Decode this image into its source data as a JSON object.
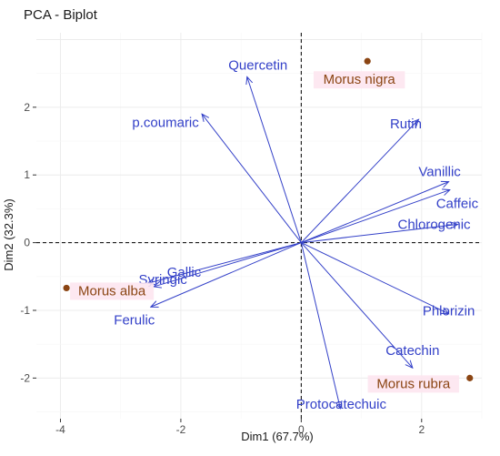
{
  "chart_data": {
    "type": "scatter",
    "title": "PCA - Biplot",
    "xlabel": "Dim1 (67.7%)",
    "ylabel": "Dim2 (32.3%)",
    "xlim": [
      -4.4,
      3.0
    ],
    "ylim": [
      -2.6,
      3.1
    ],
    "x_ticks": [
      -4,
      -2,
      0,
      2
    ],
    "y_ticks": [
      -2,
      -1,
      0,
      1,
      2
    ],
    "grid": true,
    "reference_lines": "dashed lines at x = 0 and y = 0",
    "arrow_color": "#3340c8",
    "point_color": "#8b4513",
    "variables": [
      {
        "name": "Quercetin",
        "x": -0.9,
        "y": 2.45
      },
      {
        "name": "p.coumaric",
        "x": -1.65,
        "y": 1.9
      },
      {
        "name": "Rutin",
        "x": 1.95,
        "y": 1.82
      },
      {
        "name": "Vanillic",
        "x": 2.45,
        "y": 0.9
      },
      {
        "name": "Caffeic",
        "x": 2.47,
        "y": 0.78
      },
      {
        "name": "Chlorogenic",
        "x": 2.6,
        "y": 0.27
      },
      {
        "name": "Gallic",
        "x": -2.55,
        "y": -0.6
      },
      {
        "name": "Syringic",
        "x": -2.45,
        "y": -0.65
      },
      {
        "name": "Ferulic",
        "x": -2.5,
        "y": -0.95
      },
      {
        "name": "Phlorizin",
        "x": 2.45,
        "y": -1.05
      },
      {
        "name": "Catechin",
        "x": 1.85,
        "y": -1.85
      },
      {
        "name": "Protocatechuic",
        "x": 0.65,
        "y": -2.45
      }
    ],
    "individuals": [
      {
        "name": "Morus nigra",
        "x": 1.1,
        "y": 2.68
      },
      {
        "name": "Morus alba",
        "x": -3.9,
        "y": -0.67
      },
      {
        "name": "Morus rubra",
        "x": 2.8,
        "y": -2.0
      }
    ]
  }
}
